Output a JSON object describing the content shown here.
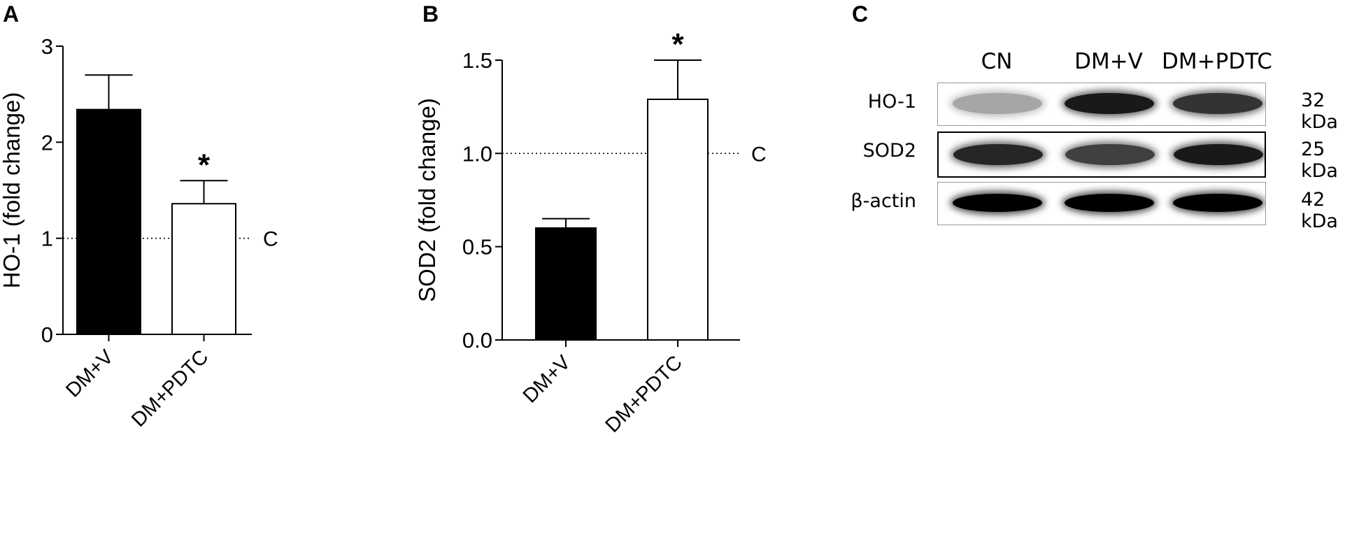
{
  "panels": {
    "a": "A",
    "b": "B",
    "c": "C"
  },
  "chart_data": [
    {
      "type": "bar",
      "panel": "A",
      "categories": [
        "DM+V",
        "DM+PDTC"
      ],
      "values": [
        2.34,
        1.36
      ],
      "errors": [
        0.36,
        0.24
      ],
      "fills": [
        "#000000",
        "#ffffff"
      ],
      "significance": [
        "",
        "*"
      ],
      "ylabel": "HO-1 (fold change)",
      "ylim": [
        0,
        3
      ],
      "yticks": [
        "0",
        "1",
        "2",
        "3"
      ],
      "reference": {
        "value": 1,
        "label": "C"
      }
    },
    {
      "type": "bar",
      "panel": "B",
      "categories": [
        "DM+V",
        "DM+PDTC"
      ],
      "values": [
        0.6,
        1.29
      ],
      "errors": [
        0.05,
        0.21
      ],
      "fills": [
        "#000000",
        "#ffffff"
      ],
      "significance": [
        "",
        "*"
      ],
      "ylabel": "SOD2 (fold change)",
      "ylim": [
        0,
        1.5
      ],
      "yticks": [
        "0.0",
        "0.5",
        "1.0",
        "1.5"
      ],
      "reference": {
        "value": 1.0,
        "label": "C"
      }
    }
  ],
  "blot": {
    "lanes": [
      "CN",
      "DM+V",
      "DM+PDTC"
    ],
    "rows": [
      {
        "label": "HO-1",
        "kda": "32 kDa",
        "intensity": [
          0.35,
          0.9,
          0.8
        ]
      },
      {
        "label": "SOD2",
        "kda": "25 kDa",
        "intensity": [
          0.85,
          0.75,
          0.9
        ]
      },
      {
        "label": "β-actin",
        "kda": "42 kDa",
        "intensity": [
          1.0,
          1.0,
          1.0
        ]
      }
    ]
  }
}
